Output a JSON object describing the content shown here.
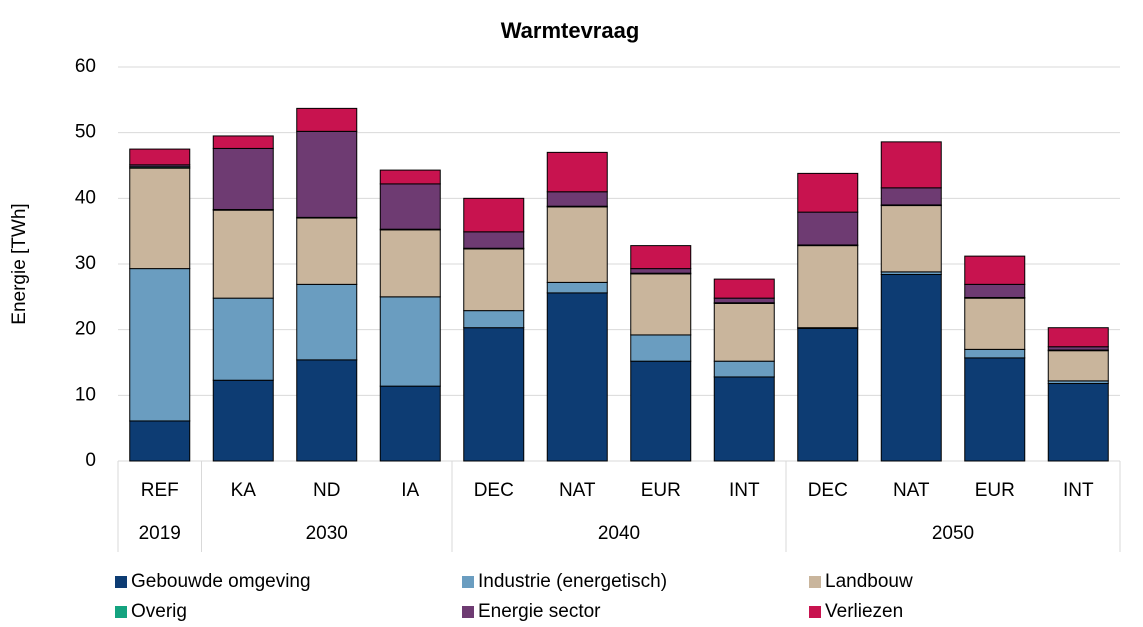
{
  "chart_data": {
    "type": "stacked_bar",
    "title": "Warmtevraag",
    "y_label": "Energie [TWh]",
    "categories": [
      "REF",
      "KA",
      "ND",
      "IA",
      "DEC",
      "NAT",
      "EUR",
      "INT",
      "DEC",
      "NAT",
      "EUR",
      "INT"
    ],
    "groups": [
      "2019",
      "2030",
      null,
      null,
      "2040",
      null,
      null,
      null,
      "2050",
      null,
      null,
      null
    ],
    "series": [
      {
        "name": "Gebouwde omgeving",
        "color": "#0d3c73",
        "values": [
          6.1,
          12.3,
          15.4,
          11.4,
          20.3,
          25.6,
          15.2,
          12.8,
          20.2,
          28.4,
          15.7,
          11.8
        ]
      },
      {
        "name": "Industrie (energetisch)",
        "color": "#6a9dc0",
        "values": [
          23.2,
          12.5,
          11.5,
          13.6,
          2.6,
          1.6,
          4.0,
          2.4,
          0.1,
          0.4,
          1.3,
          0.4
        ]
      },
      {
        "name": "Landbouw",
        "color": "#c9b59c",
        "values": [
          15.3,
          13.4,
          10.1,
          10.2,
          9.4,
          11.5,
          9.3,
          8.8,
          12.5,
          10.1,
          7.8,
          4.6
        ]
      },
      {
        "name": "Overig",
        "color": "#14a37f",
        "values": [
          0.2,
          0.1,
          0.1,
          0.1,
          0.1,
          0.1,
          0.1,
          0.1,
          0.1,
          0.1,
          0.1,
          0.1
        ]
      },
      {
        "name": "Energie sector",
        "color": "#6e3b72",
        "values": [
          0.3,
          9.3,
          13.1,
          6.9,
          2.5,
          2.2,
          0.7,
          0.7,
          5.0,
          2.6,
          2.0,
          0.5
        ]
      },
      {
        "name": "Verliezen",
        "color": "#c8134f",
        "values": [
          2.4,
          1.9,
          3.5,
          2.1,
          5.1,
          6.0,
          3.5,
          2.9,
          5.9,
          7.0,
          4.3,
          2.9
        ]
      }
    ],
    "ylim": [
      0,
      60
    ],
    "yticks": [
      0,
      10,
      20,
      30,
      40,
      50,
      60
    ],
    "grid": true,
    "legend": "bottom"
  }
}
